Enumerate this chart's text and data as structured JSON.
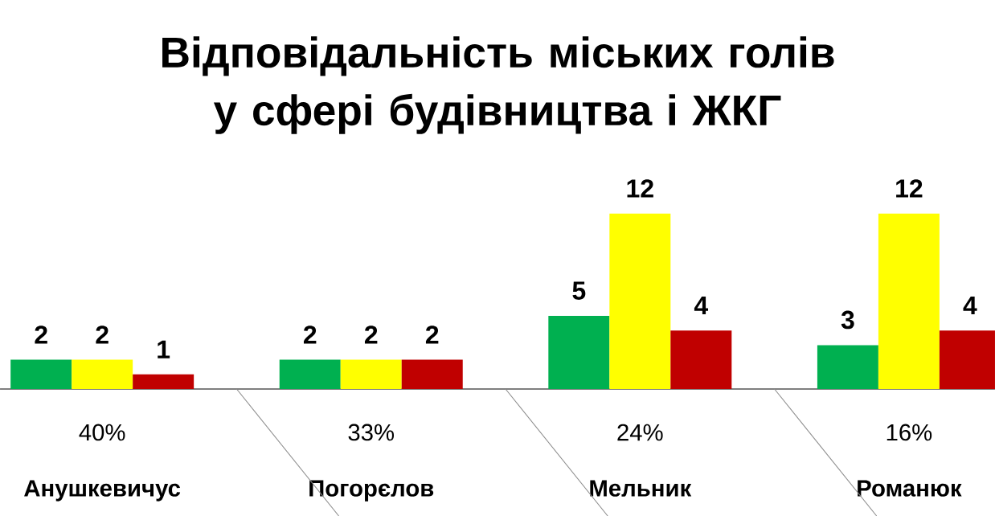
{
  "chart_data": {
    "type": "bar",
    "title": "Відповідальність міських голів у сфері будівництва і ЖКГ",
    "categories": [
      "Анушкевичус",
      "Погорєлов",
      "Мельник",
      "Романюк"
    ],
    "series": [
      {
        "color": "#00b050",
        "values": [
          2,
          2,
          5,
          3
        ]
      },
      {
        "color": "#ffff00",
        "values": [
          2,
          2,
          12,
          12
        ]
      },
      {
        "color": "#c00000",
        "values": [
          1,
          2,
          4,
          4
        ]
      }
    ],
    "data_labels": true,
    "annotations": [
      "40%",
      "33%",
      "24%",
      "16%"
    ]
  }
}
